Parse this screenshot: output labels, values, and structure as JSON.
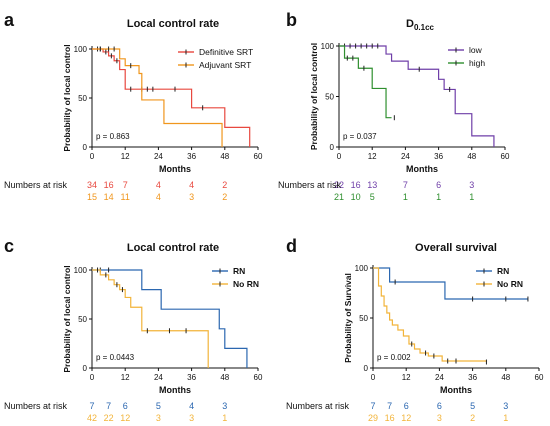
{
  "chart_data": [
    {
      "type": "line",
      "panel_letter": "a",
      "title": "Local control rate",
      "title_sub": "",
      "xlabel": "Months",
      "ylabel": "Probability of local control",
      "xlim": [
        0,
        60
      ],
      "ylim": [
        0,
        100
      ],
      "xticks": [
        0,
        12,
        24,
        36,
        48,
        60
      ],
      "yticks": [
        0,
        50,
        100
      ],
      "legend": "top-right",
      "pvalue": "p = 0.863",
      "risk_label": "Numbers at risk",
      "risk_x": [
        0,
        6,
        12,
        24,
        36,
        48
      ],
      "series": [
        {
          "name": "Definitive SRT",
          "color": "#e8483f",
          "x": [
            0,
            4,
            6,
            8,
            10,
            12,
            36,
            48,
            57
          ],
          "y": [
            100,
            97,
            93,
            88,
            79,
            59,
            40,
            20,
            0
          ],
          "censored_x": [
            2,
            3,
            5,
            7,
            9,
            14,
            18,
            20,
            22,
            30,
            40
          ],
          "risk": [
            "34",
            "16",
            "7",
            "4",
            "4",
            "2"
          ]
        },
        {
          "name": "Adjuvant SRT",
          "color": "#f0961d",
          "x": [
            0,
            10,
            12,
            17,
            18,
            26,
            47
          ],
          "y": [
            100,
            90,
            83,
            75,
            48,
            24,
            0
          ],
          "censored_x": [
            3,
            6,
            8,
            14
          ],
          "risk": [
            "15",
            "14",
            "11",
            "4",
            "3",
            "2"
          ]
        }
      ]
    },
    {
      "type": "line",
      "panel_letter": "b",
      "title": "D",
      "title_sub": "0.1cc",
      "xlabel": "Months",
      "ylabel": "Probability of local control",
      "xlim": [
        0,
        60
      ],
      "ylim": [
        0,
        100
      ],
      "xticks": [
        0,
        12,
        24,
        36,
        48,
        60
      ],
      "yticks": [
        0,
        50,
        100
      ],
      "legend": "top-right",
      "pvalue": "p = 0.037",
      "risk_label": "Numbers at risk",
      "risk_x": [
        0,
        6,
        12,
        24,
        36,
        48
      ],
      "series": [
        {
          "name": "low",
          "color": "#6f3fa8",
          "x": [
            0,
            17,
            19,
            25,
            36,
            38,
            42,
            48,
            56
          ],
          "y": [
            100,
            92,
            85,
            77,
            67,
            57,
            33,
            11,
            0
          ],
          "censored_x": [
            2,
            4,
            6,
            8,
            10,
            12,
            14,
            29,
            40
          ],
          "risk": [
            "22",
            "16",
            "13",
            "7",
            "6",
            "3"
          ]
        },
        {
          "name": "high",
          "color": "#2f8f2f",
          "x": [
            0,
            2,
            7,
            12,
            17,
            19
          ],
          "y": [
            100,
            88,
            78,
            58,
            29,
            29
          ],
          "censored_x": [
            3,
            5,
            9,
            20
          ],
          "risk": [
            "21",
            "10",
            "5",
            "1",
            "1",
            "1"
          ]
        }
      ]
    },
    {
      "type": "line",
      "panel_letter": "c",
      "title": "Local control rate",
      "title_sub": "",
      "xlabel": "Months",
      "ylabel": "Probability of local control",
      "xlim": [
        0,
        60
      ],
      "ylim": [
        0,
        100
      ],
      "xticks": [
        0,
        12,
        24,
        36,
        48,
        60
      ],
      "yticks": [
        0,
        50,
        100
      ],
      "legend": "top-right",
      "pvalue": "p = 0.0443",
      "risk_label": "Numbers at risk",
      "risk_x": [
        0,
        6,
        12,
        24,
        36,
        48
      ],
      "series": [
        {
          "name": "RN",
          "color": "#2b67b0",
          "x": [
            0,
            18,
            25,
            36,
            46,
            48,
            56
          ],
          "y": [
            100,
            80,
            60,
            60,
            40,
            20,
            0
          ],
          "censored_x": [
            3,
            6
          ],
          "risk": [
            "7",
            "7",
            "6",
            "5",
            "4",
            "3"
          ]
        },
        {
          "name": "No RN",
          "color": "#f2b43a",
          "x": [
            0,
            3,
            6,
            8,
            10,
            12,
            14,
            18,
            42
          ],
          "y": [
            100,
            95,
            90,
            85,
            80,
            72,
            62,
            38,
            0
          ],
          "censored_x": [
            2,
            5,
            9,
            11,
            20,
            28,
            34
          ],
          "risk": [
            "42",
            "22",
            "12",
            "3",
            "3",
            "1"
          ]
        }
      ]
    },
    {
      "type": "line",
      "panel_letter": "d",
      "title": "Overall survival",
      "title_sub": "",
      "xlabel": "Months",
      "ylabel": "Probability of Survival",
      "xlim": [
        0,
        60
      ],
      "ylim": [
        0,
        100
      ],
      "xticks": [
        0,
        12,
        24,
        36,
        48,
        60
      ],
      "yticks": [
        0,
        50,
        100
      ],
      "legend": "top-right",
      "pvalue": "p = 0.002",
      "risk_label": "Numbers at risk",
      "risk_x": [
        0,
        6,
        12,
        24,
        36,
        48
      ],
      "series": [
        {
          "name": "RN",
          "color": "#2b67b0",
          "x": [
            0,
            6,
            26,
            56
          ],
          "y": [
            100,
            86,
            69,
            69
          ],
          "censored_x": [
            8,
            36,
            48,
            56
          ],
          "risk": [
            "7",
            "7",
            "6",
            "6",
            "5",
            "3"
          ]
        },
        {
          "name": "No RN",
          "color": "#f2b43a",
          "x": [
            0,
            2,
            3,
            4,
            5,
            6,
            7,
            9,
            11,
            13,
            15,
            17,
            20,
            25,
            41
          ],
          "y": [
            100,
            82,
            72,
            62,
            55,
            48,
            43,
            38,
            32,
            24,
            19,
            15,
            12,
            7,
            6
          ],
          "censored_x": [
            14,
            19,
            22,
            27,
            30,
            41
          ],
          "risk": [
            "29",
            "16",
            "12",
            "3",
            "2",
            "1"
          ]
        }
      ]
    }
  ]
}
